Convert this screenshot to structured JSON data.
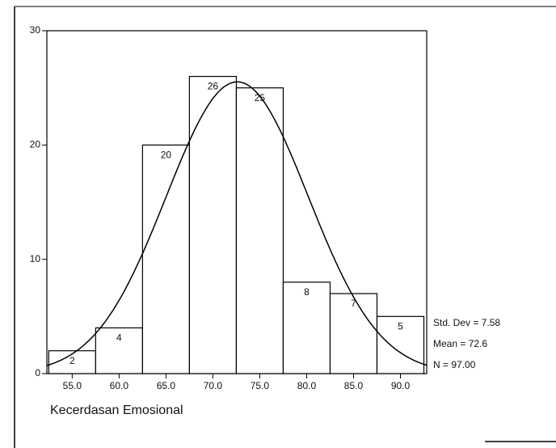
{
  "chart_data": {
    "type": "histogram",
    "bins": [
      52.5,
      57.5,
      62.5,
      67.5,
      72.5,
      77.5,
      82.5,
      87.5,
      92.5
    ],
    "values": [
      2,
      4,
      20,
      26,
      25,
      8,
      7,
      5
    ],
    "color": "#ffffff",
    "xlim": [
      52.3,
      92.8
    ],
    "ylim": [
      0,
      30
    ],
    "xticks": [
      {
        "value": 55,
        "label": "55.0"
      },
      {
        "value": 60,
        "label": "60.0"
      },
      {
        "value": 65,
        "label": "65.0"
      },
      {
        "value": 70,
        "label": "70.0"
      },
      {
        "value": 75,
        "label": "75.0"
      },
      {
        "value": 80,
        "label": "80.0"
      },
      {
        "value": 85,
        "label": "85.0"
      },
      {
        "value": 90,
        "label": "90.0"
      }
    ],
    "yticks": [
      0,
      10,
      20,
      30
    ],
    "x_label": "Kecerdasan Emosional",
    "stats": [
      {
        "label": "Std. Dev = 7.58",
        "value": 7.58
      },
      {
        "label": "Mean = 72.6",
        "value": 72.6
      },
      {
        "label": "N = 97.00",
        "value": 97
      }
    ]
  }
}
